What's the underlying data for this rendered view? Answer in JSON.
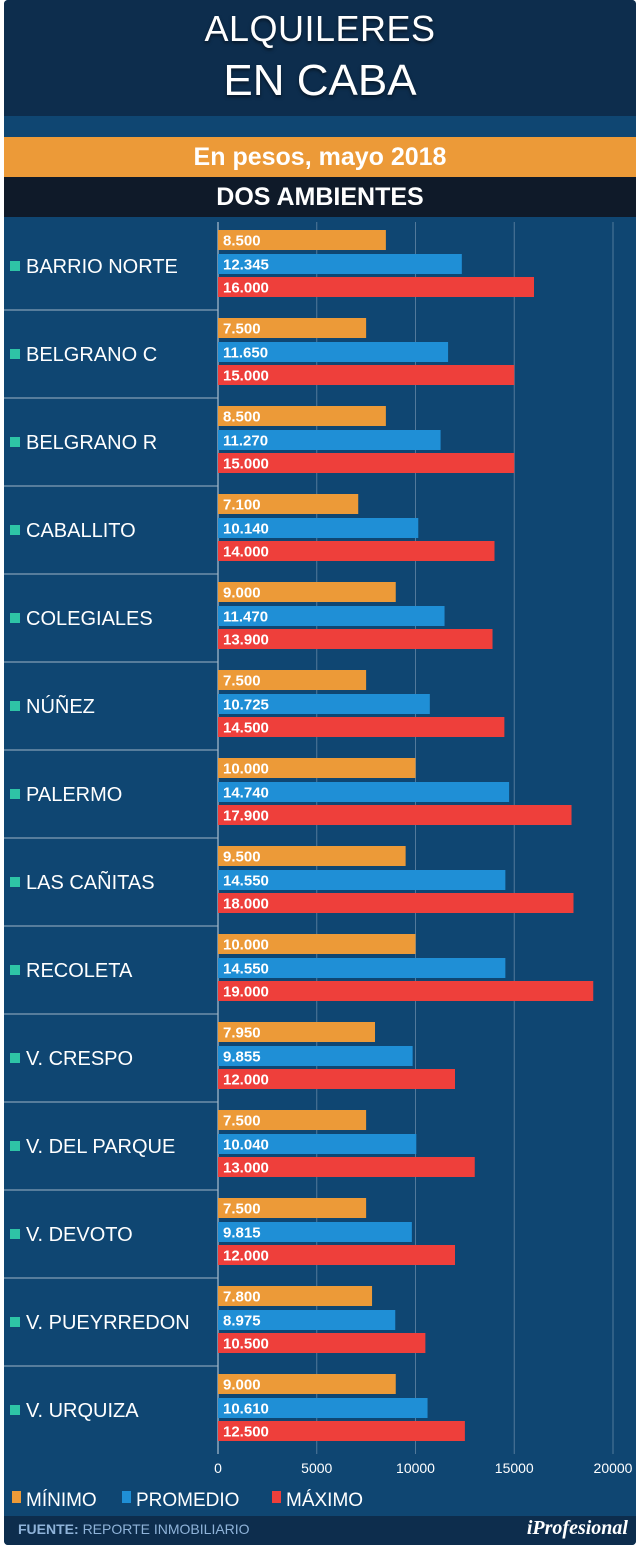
{
  "header": {
    "title_line1": "ALQUILERES",
    "title_line2": "EN CABA",
    "subtitle": "En pesos, mayo 2018",
    "section": "DOS AMBIENTES"
  },
  "footer": {
    "source_label": "FUENTE:",
    "source_text": "REPORTE INMOBILIARIO",
    "brand": "iProfesional"
  },
  "colors": {
    "background": "#0f4672",
    "header": "#0d2d4d",
    "minimo": "#ec9a38",
    "promedio": "#1f8fd6",
    "maximo": "#ee3f3b",
    "bullet": "#2ec4a6"
  },
  "chart_data": {
    "type": "bar",
    "orientation": "horizontal",
    "categories": [
      "BARRIO NORTE",
      "BELGRANO C",
      "BELGRANO R",
      "CABALLITO",
      "COLEGIALES",
      "NÚÑEZ",
      "PALERMO",
      "LAS CAÑITAS",
      "RECOLETA",
      "V. CRESPO",
      "V. DEL PARQUE",
      "V. DEVOTO",
      "V. PUEYRREDON",
      "V. URQUIZA"
    ],
    "series": [
      {
        "name": "MÍNIMO",
        "color": "#ec9a38",
        "values": [
          8500,
          7500,
          8500,
          7100,
          9000,
          7500,
          10000,
          9500,
          10000,
          7950,
          7500,
          7500,
          7800,
          9000
        ],
        "labels": [
          "8.500",
          "7.500",
          "8.500",
          "7.100",
          "9.000",
          "7.500",
          "10.000",
          "9.500",
          "10.000",
          "7.950",
          "7.500",
          "7.500",
          "7.800",
          "9.000"
        ]
      },
      {
        "name": "PROMEDIO",
        "color": "#1f8fd6",
        "values": [
          12345,
          11650,
          11270,
          10140,
          11470,
          10725,
          14740,
          14550,
          14550,
          9855,
          10040,
          9815,
          8975,
          10610
        ],
        "labels": [
          "12.345",
          "11.650",
          "11.270",
          "10.140",
          "11.470",
          "10.725",
          "14.740",
          "14.550",
          "14.550",
          "9.855",
          "10.040",
          "9.815",
          "8.975",
          "10.610"
        ]
      },
      {
        "name": "MÁXIMO",
        "color": "#ee3f3b",
        "values": [
          16000,
          15000,
          15000,
          14000,
          13900,
          14500,
          17900,
          18000,
          19000,
          12000,
          13000,
          12000,
          10500,
          12500
        ],
        "labels": [
          "16.000",
          "15.000",
          "15.000",
          "14.000",
          "13.900",
          "14.500",
          "17.900",
          "18.000",
          "19.000",
          "12.000",
          "13.000",
          "12.000",
          "10.500",
          "12.500"
        ]
      }
    ],
    "xlim": [
      0,
      20000
    ],
    "xticks": [
      "0",
      "5000",
      "10000",
      "15000",
      "20000"
    ],
    "grid": true,
    "legend_position": "bottom-left"
  }
}
